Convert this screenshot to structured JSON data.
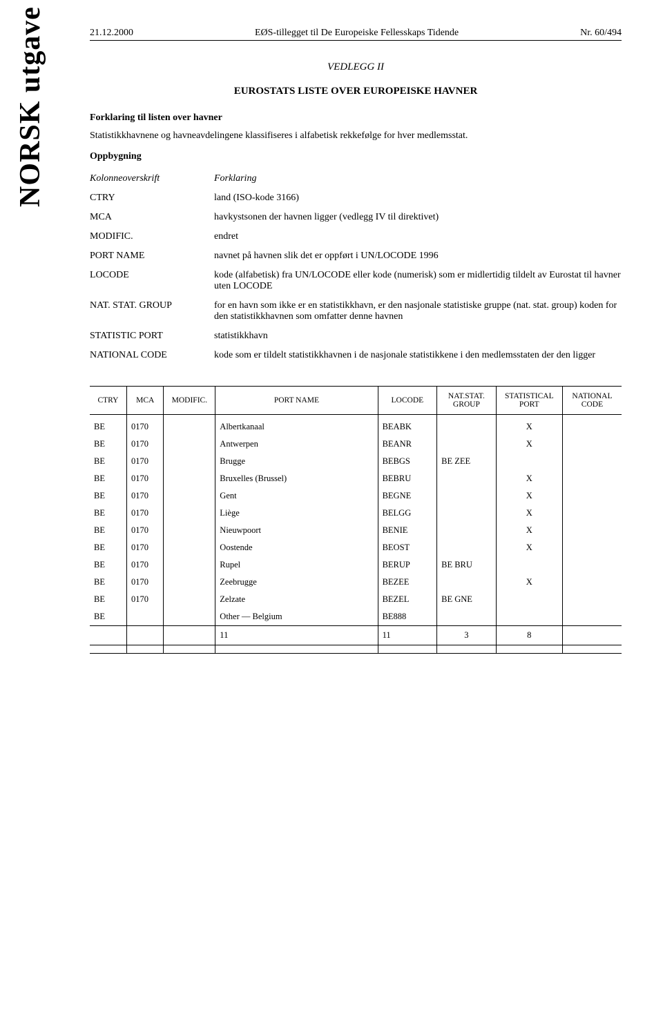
{
  "header": {
    "date": "21.12.2000",
    "center": "EØS-tillegget til De Europeiske Fellesskaps Tidende",
    "right": "Nr. 60/494"
  },
  "sidebar": "NORSK utgave",
  "titles": {
    "vedlegg": "VEDLEGG II",
    "subtitle": "EUROSTATS LISTE OVER EUROPEISKE HAVNER"
  },
  "intro": {
    "forklaring_head": "Forklaring til listen over havner",
    "stats_text": "Statistikkhavnene og havneavdelingene klassifiseres i alfabetisk rekkefølge for hver medlemsstat.",
    "oppbygning": "Oppbygning"
  },
  "defs": [
    {
      "term": "Kolonneoverskrift",
      "desc": "Forklaring",
      "italic": true
    },
    {
      "term": "CTRY",
      "desc": "land (ISO-kode 3166)"
    },
    {
      "term": "MCA",
      "desc": "havkystsonen der havnen ligger (vedlegg IV til direktivet)"
    },
    {
      "term": "MODIFIC.",
      "desc": "endret"
    },
    {
      "term": "PORT NAME",
      "desc": "navnet på havnen slik det er oppført i UN/LOCODE 1996"
    },
    {
      "term": "LOCODE",
      "desc": "kode (alfabetisk) fra UN/LOCODE eller kode (numerisk) som er midlertidig tildelt av Eurostat til havner uten LOCODE"
    },
    {
      "term": "NAT. STAT. GROUP",
      "desc": "for en havn som ikke er en statistikkhavn, er den nasjonale statistiske gruppe (nat. stat. group) koden for den statistikkhavnen som omfatter denne havnen"
    },
    {
      "term": "STATISTIC PORT",
      "desc": "statistikkhavn"
    },
    {
      "term": "NATIONAL CODE",
      "desc": "kode som er tildelt statistikkhavnen i de nasjonale statistikkene i den medlemsstaten der den ligger"
    }
  ],
  "table": {
    "headers": {
      "ctry": "CTRY",
      "mca": "MCA",
      "modific": "MODIFIC.",
      "port_name": "PORT NAME",
      "locode": "LOCODE",
      "nat_stat_group": "NAT.STAT. GROUP",
      "statistical_port": "STATISTICAL PORT",
      "national_code": "NATIONAL CODE"
    },
    "rows": [
      {
        "ctry": "BE",
        "mca": "0170",
        "modific": "",
        "name": "Albertkanaal",
        "locode": "BEABK",
        "group": "",
        "stat": "X",
        "nat": ""
      },
      {
        "ctry": "BE",
        "mca": "0170",
        "modific": "",
        "name": "Antwerpen",
        "locode": "BEANR",
        "group": "",
        "stat": "X",
        "nat": ""
      },
      {
        "ctry": "BE",
        "mca": "0170",
        "modific": "",
        "name": "Brugge",
        "locode": "BEBGS",
        "group": "BE ZEE",
        "stat": "",
        "nat": ""
      },
      {
        "ctry": "BE",
        "mca": "0170",
        "modific": "",
        "name": "Bruxelles (Brussel)",
        "locode": "BEBRU",
        "group": "",
        "stat": "X",
        "nat": ""
      },
      {
        "ctry": "BE",
        "mca": "0170",
        "modific": "",
        "name": "Gent",
        "locode": "BEGNE",
        "group": "",
        "stat": "X",
        "nat": ""
      },
      {
        "ctry": "BE",
        "mca": "0170",
        "modific": "",
        "name": "Liège",
        "locode": "BELGG",
        "group": "",
        "stat": "X",
        "nat": ""
      },
      {
        "ctry": "BE",
        "mca": "0170",
        "modific": "",
        "name": "Nieuwpoort",
        "locode": "BENIE",
        "group": "",
        "stat": "X",
        "nat": ""
      },
      {
        "ctry": "BE",
        "mca": "0170",
        "modific": "",
        "name": "Oostende",
        "locode": "BEOST",
        "group": "",
        "stat": "X",
        "nat": ""
      },
      {
        "ctry": "BE",
        "mca": "0170",
        "modific": "",
        "name": "Rupel",
        "locode": "BERUP",
        "group": "BE BRU",
        "stat": "",
        "nat": ""
      },
      {
        "ctry": "BE",
        "mca": "0170",
        "modific": "",
        "name": "Zeebrugge",
        "locode": "BEZEE",
        "group": "",
        "stat": "X",
        "nat": ""
      },
      {
        "ctry": "BE",
        "mca": "0170",
        "modific": "",
        "name": "Zelzate",
        "locode": "BEZEL",
        "group": "BE GNE",
        "stat": "",
        "nat": ""
      },
      {
        "ctry": "BE",
        "mca": "",
        "modific": "",
        "name": "Other — Belgium",
        "locode": "BE888",
        "group": "",
        "stat": "",
        "nat": ""
      }
    ],
    "totals": {
      "name": "11",
      "locode": "11",
      "group": "3",
      "stat": "8"
    }
  }
}
